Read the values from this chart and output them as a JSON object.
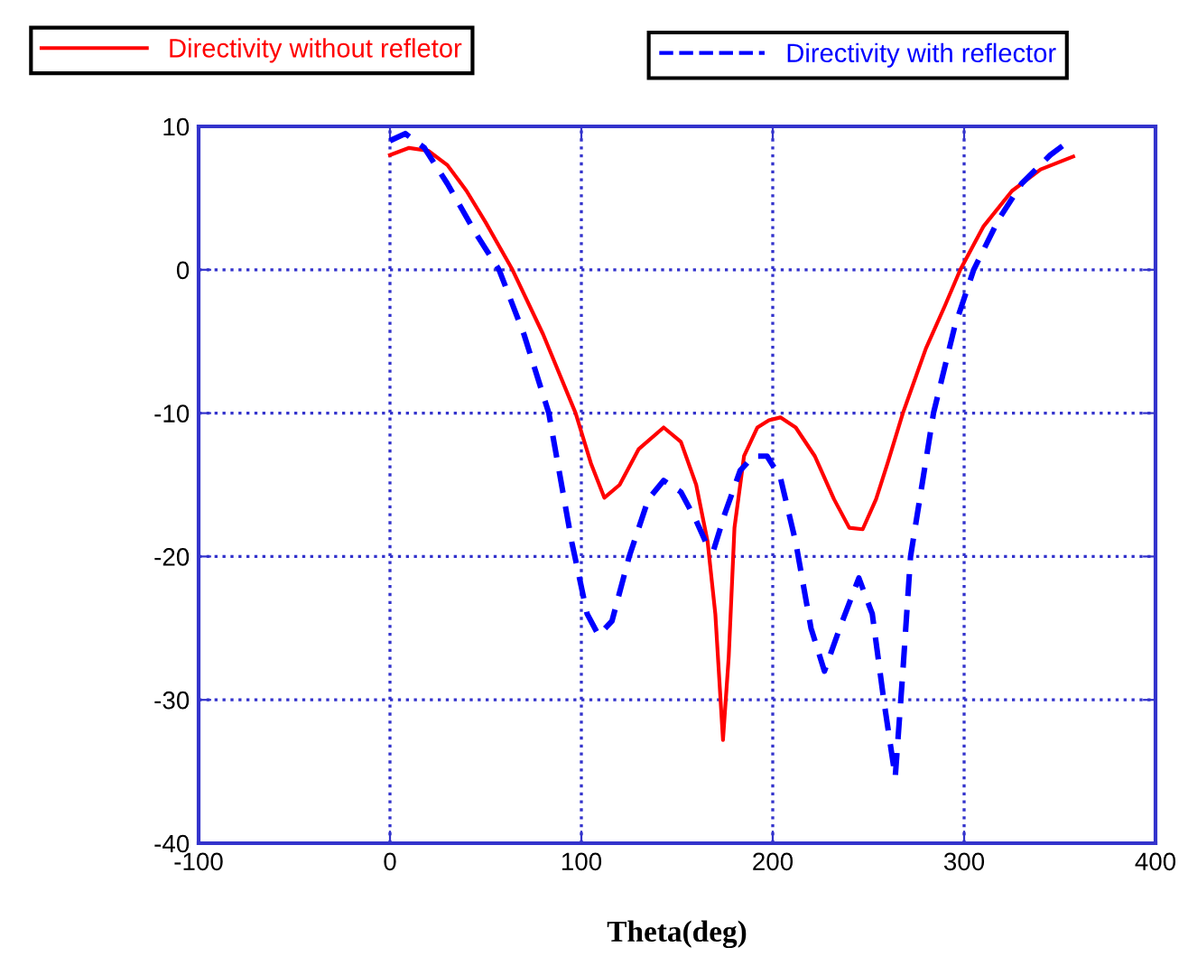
{
  "chart_data": {
    "type": "line",
    "xlabel": "Theta(deg)",
    "xlim": [
      -100,
      400
    ],
    "ylim": [
      -40,
      10
    ],
    "xticks": [
      -100,
      0,
      100,
      200,
      300,
      400
    ],
    "yticks": [
      -40,
      -30,
      -20,
      -10,
      0,
      10
    ],
    "grid": true,
    "legend": "top",
    "marker": "none",
    "series": [
      {
        "name": "Directivity without refletor",
        "color": "#ff0000",
        "line_style": "solid",
        "x": [
          0,
          10,
          20,
          30,
          40,
          50,
          64,
          80,
          97,
          105,
          112,
          120,
          130,
          143,
          152,
          160,
          166,
          170,
          174,
          177,
          180,
          185,
          192,
          198,
          204,
          212,
          222,
          232,
          240,
          247,
          254,
          260,
          268,
          280,
          290,
          298,
          310,
          325,
          340,
          357
        ],
        "values": [
          8,
          8.5,
          8.3,
          7.3,
          5.5,
          3.3,
          0,
          -4.5,
          -10,
          -13.5,
          -15.9,
          -15,
          -12.5,
          -11,
          -12,
          -15,
          -19,
          -24,
          -32.8,
          -27,
          -18,
          -13,
          -11,
          -10.5,
          -10.3,
          -11,
          -13,
          -16,
          -18,
          -18.1,
          -16,
          -13.5,
          -10,
          -5.5,
          -2.5,
          0,
          3,
          5.5,
          7,
          7.9
        ]
      },
      {
        "name": "Directivity with reflector",
        "color": "#0000ff",
        "line_style": "dashed",
        "x": [
          0,
          8,
          18,
          30,
          45,
          57,
          70,
          83,
          95,
          103,
          109,
          116,
          125,
          135,
          143,
          152,
          160,
          165,
          169,
          175,
          183,
          190,
          197,
          204,
          212,
          220,
          227,
          235,
          245,
          252,
          258,
          264,
          268,
          272,
          278,
          284,
          295,
          305,
          318,
          330,
          345,
          355
        ],
        "values": [
          9,
          9.5,
          8.5,
          6,
          2.5,
          0,
          -4.5,
          -10,
          -19,
          -24,
          -25.5,
          -24.5,
          -20,
          -16,
          -14.7,
          -15.5,
          -17.5,
          -19,
          -19.6,
          -17,
          -14,
          -13,
          -13,
          -14.5,
          -19,
          -25,
          -28,
          -25,
          -21.5,
          -24,
          -30,
          -35.4,
          -28,
          -20,
          -15,
          -10,
          -4,
          0,
          3.5,
          6,
          8,
          9
        ]
      }
    ]
  }
}
